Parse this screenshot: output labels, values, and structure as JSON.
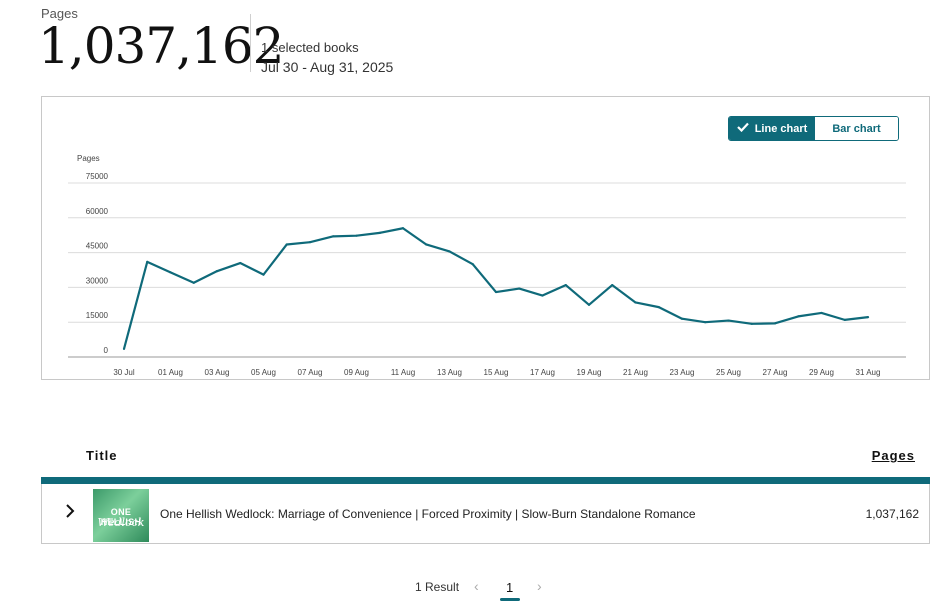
{
  "summary": {
    "label": "Pages",
    "total": "1,037,162",
    "selected": "1 selected books",
    "date_range": "Jul 30 - Aug 31, 2025"
  },
  "chart_toggle": {
    "line_label": "Line chart",
    "bar_label": "Bar chart",
    "active": "line"
  },
  "chart_data": {
    "type": "line",
    "ylabel": "Pages",
    "ylim": [
      0,
      75000
    ],
    "yticks": [
      0,
      15000,
      30000,
      45000,
      60000,
      75000
    ],
    "grid": true,
    "color": "#0f6a7a",
    "xtick_labels": [
      "30 Jul",
      "01 Aug",
      "03 Aug",
      "05 Aug",
      "07 Aug",
      "09 Aug",
      "11 Aug",
      "13 Aug",
      "15 Aug",
      "17 Aug",
      "19 Aug",
      "21 Aug",
      "23 Aug",
      "25 Aug",
      "27 Aug",
      "29 Aug",
      "31 Aug"
    ],
    "x": [
      "30 Jul",
      "31 Jul",
      "01 Aug",
      "02 Aug",
      "03 Aug",
      "04 Aug",
      "05 Aug",
      "06 Aug",
      "07 Aug",
      "08 Aug",
      "09 Aug",
      "10 Aug",
      "11 Aug",
      "12 Aug",
      "13 Aug",
      "14 Aug",
      "15 Aug",
      "16 Aug",
      "17 Aug",
      "18 Aug",
      "19 Aug",
      "20 Aug",
      "21 Aug",
      "22 Aug",
      "23 Aug",
      "24 Aug",
      "25 Aug",
      "26 Aug",
      "27 Aug",
      "28 Aug",
      "29 Aug",
      "30 Aug",
      "31 Aug"
    ],
    "values": [
      3500,
      41000,
      36500,
      32000,
      37000,
      40500,
      35500,
      48500,
      49500,
      52000,
      52300,
      53500,
      55500,
      48500,
      45500,
      40000,
      28000,
      29500,
      26500,
      31000,
      22500,
      31000,
      23500,
      21500,
      16500,
      15000,
      15700,
      14300,
      14500,
      17500,
      19000,
      16000,
      17200
    ]
  },
  "table": {
    "title_header": "Title",
    "pages_header": "Pages",
    "rows": [
      {
        "cover_text_1": "ONE HELLISH",
        "cover_text_2": "Wedlock",
        "title": "One Hellish Wedlock: Marriage of Convenience | Forced Proximity | Slow-Burn Standalone Romance",
        "pages": "1,037,162"
      }
    ]
  },
  "pagination": {
    "results": "1 Result",
    "current_page": "1",
    "prev_icon": "‹",
    "next_icon": "›"
  }
}
